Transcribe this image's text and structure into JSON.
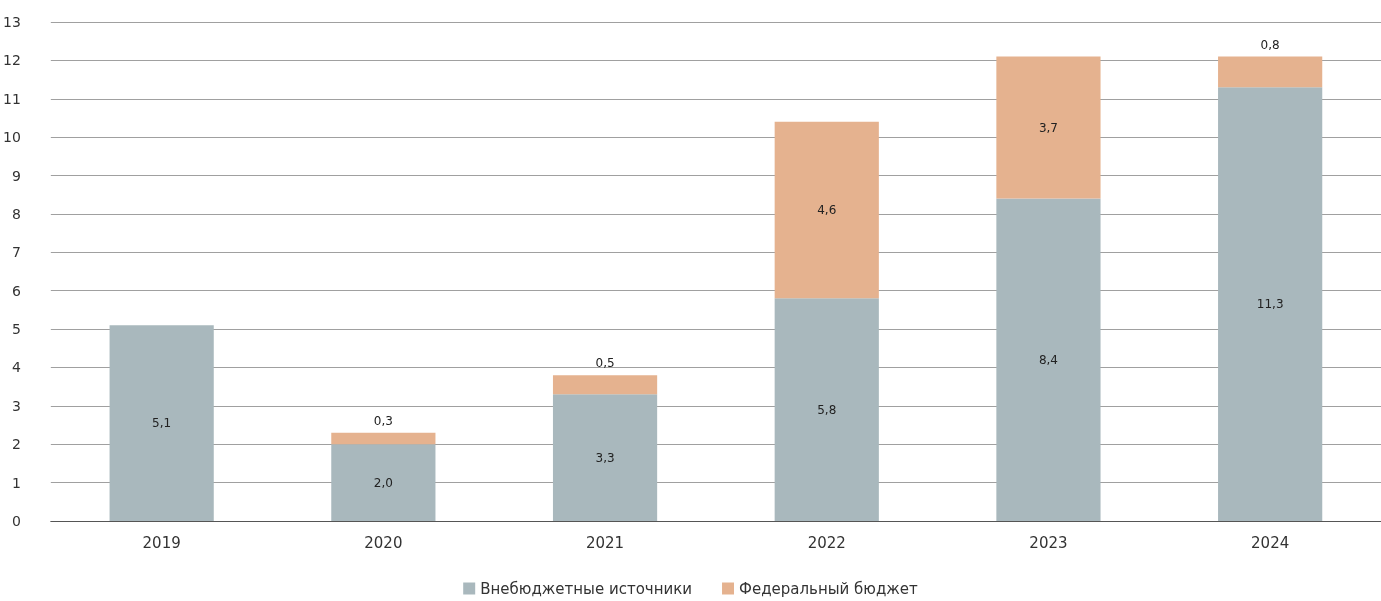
{
  "chart_data": {
    "type": "bar",
    "stacked": true,
    "categories": [
      "2019",
      "2020",
      "2021",
      "2022",
      "2023",
      "2024"
    ],
    "series": [
      {
        "name": "Внебюджетные источники",
        "color": "#a9b8bd",
        "values": [
          5.1,
          2.0,
          3.3,
          5.8,
          8.4,
          11.3
        ],
        "value_labels": [
          "5,1",
          "2,0",
          "3,3",
          "5,8",
          "8,4",
          "11,3"
        ]
      },
      {
        "name": "Федеральный бюджет",
        "color": "#e5b28f",
        "values": [
          null,
          0.3,
          0.5,
          4.6,
          3.7,
          0.8
        ],
        "value_labels": [
          null,
          "0,3",
          "0,5",
          "4,6",
          "3,7",
          "0,8"
        ]
      }
    ],
    "ylim": [
      0,
      13
    ],
    "yticks": [
      0,
      1,
      2,
      3,
      4,
      5,
      6,
      7,
      8,
      9,
      10,
      11,
      12,
      13
    ],
    "grid": "y",
    "legend": "bottom"
  }
}
